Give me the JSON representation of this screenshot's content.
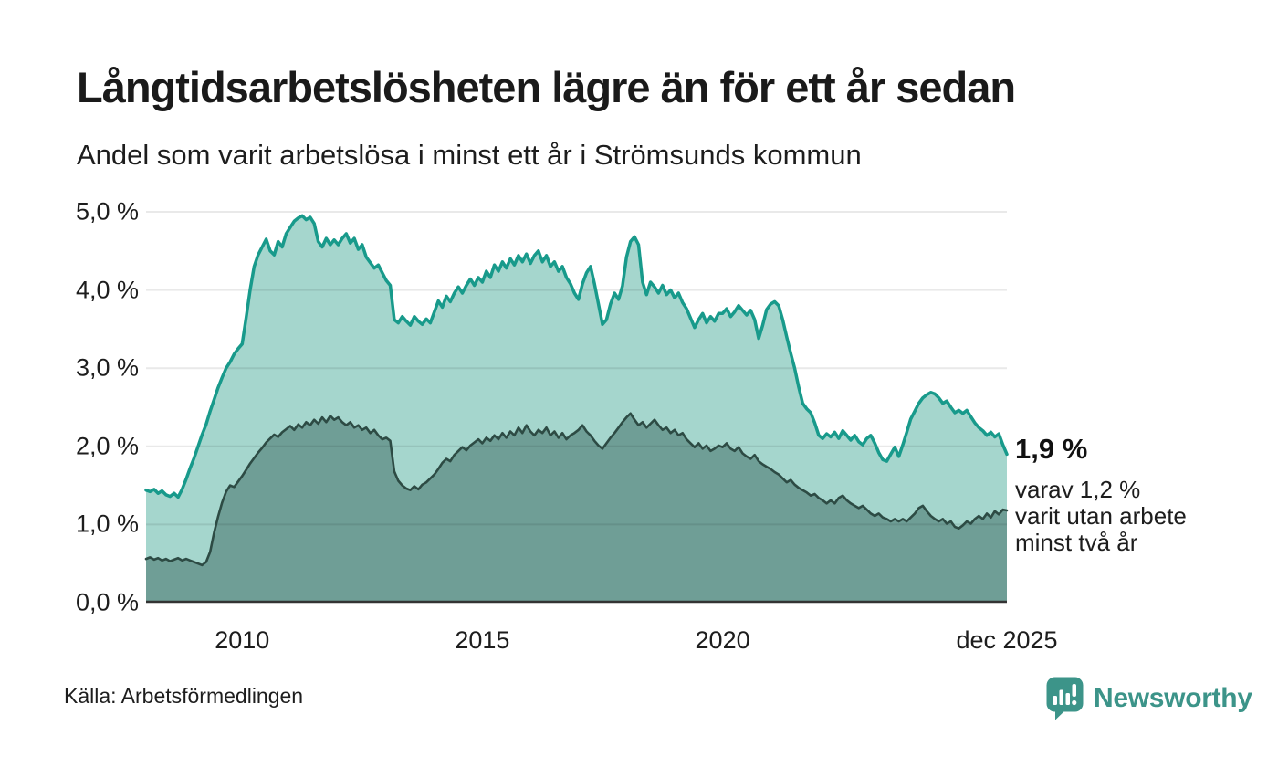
{
  "header": {
    "title": "Långtidsarbetslösheten lägre än för ett år sedan",
    "subtitle": "Andel som varit arbetslösa i minst ett år i Strömsunds kommun"
  },
  "chart_data": {
    "type": "area",
    "unit": "%",
    "x_start": "2008-01",
    "frequency": "monthly",
    "ylim": [
      0,
      5
    ],
    "grid": "horizontal",
    "legend": "none",
    "y_ticks": [
      {
        "value": 0,
        "label": "0,0 %"
      },
      {
        "value": 1,
        "label": "1,0 %"
      },
      {
        "value": 2,
        "label": "2,0 %"
      },
      {
        "value": 3,
        "label": "3,0 %"
      },
      {
        "value": 4,
        "label": "4,0 %"
      },
      {
        "value": 5,
        "label": "5,0 %"
      }
    ],
    "x_ticks": [
      {
        "date": "2010-01",
        "label": "2010"
      },
      {
        "date": "2015-01",
        "label": "2015"
      },
      {
        "date": "2020-01",
        "label": "2020"
      },
      {
        "date": "2025-12",
        "label": "dec 2025"
      }
    ],
    "series": [
      {
        "name": "Arbetslösa minst ett år",
        "latest_value": 1.9,
        "line_color": "#189a8b",
        "fill_color": "#a5d6cd",
        "values": [
          1.44,
          1.42,
          1.45,
          1.4,
          1.43,
          1.38,
          1.36,
          1.4,
          1.35,
          1.45,
          1.58,
          1.72,
          1.85,
          2.0,
          2.15,
          2.28,
          2.45,
          2.6,
          2.75,
          2.88,
          3.0,
          3.08,
          3.18,
          3.25,
          3.31,
          3.65,
          4.0,
          4.3,
          4.45,
          4.55,
          4.65,
          4.5,
          4.45,
          4.62,
          4.55,
          4.72,
          4.8,
          4.88,
          4.92,
          4.95,
          4.9,
          4.93,
          4.85,
          4.62,
          4.55,
          4.66,
          4.58,
          4.64,
          4.58,
          4.66,
          4.72,
          4.6,
          4.66,
          4.52,
          4.58,
          4.42,
          4.35,
          4.28,
          4.32,
          4.22,
          4.12,
          4.06,
          3.62,
          3.58,
          3.66,
          3.6,
          3.55,
          3.66,
          3.6,
          3.56,
          3.63,
          3.58,
          3.72,
          3.86,
          3.78,
          3.92,
          3.85,
          3.96,
          4.04,
          3.96,
          4.06,
          4.14,
          4.06,
          4.16,
          4.1,
          4.24,
          4.16,
          4.32,
          4.24,
          4.36,
          4.28,
          4.4,
          4.32,
          4.44,
          4.36,
          4.46,
          4.34,
          4.44,
          4.5,
          4.36,
          4.44,
          4.3,
          4.36,
          4.24,
          4.3,
          4.16,
          4.08,
          3.96,
          3.88,
          4.08,
          4.22,
          4.3,
          4.08,
          3.82,
          3.56,
          3.62,
          3.82,
          3.96,
          3.88,
          4.05,
          4.42,
          4.62,
          4.68,
          4.58,
          4.1,
          3.94,
          4.1,
          4.04,
          3.96,
          4.06,
          3.94,
          4.0,
          3.9,
          3.96,
          3.84,
          3.76,
          3.64,
          3.52,
          3.62,
          3.7,
          3.58,
          3.66,
          3.6,
          3.7,
          3.7,
          3.76,
          3.66,
          3.72,
          3.8,
          3.74,
          3.68,
          3.74,
          3.62,
          3.38,
          3.55,
          3.75,
          3.82,
          3.85,
          3.8,
          3.62,
          3.4,
          3.19,
          3.0,
          2.76,
          2.55,
          2.48,
          2.43,
          2.3,
          2.14,
          2.1,
          2.16,
          2.12,
          2.18,
          2.1,
          2.2,
          2.14,
          2.08,
          2.14,
          2.06,
          2.02,
          2.1,
          2.14,
          2.04,
          1.92,
          1.83,
          1.81,
          1.9,
          1.99,
          1.87,
          2.02,
          2.18,
          2.35,
          2.45,
          2.55,
          2.62,
          2.66,
          2.69,
          2.67,
          2.62,
          2.55,
          2.58,
          2.5,
          2.43,
          2.46,
          2.42,
          2.46,
          2.38,
          2.3,
          2.24,
          2.2,
          2.14,
          2.18,
          2.12,
          2.16,
          2.02,
          1.9
        ]
      },
      {
        "name": "Arbetslösa minst två år",
        "latest_value": 1.2,
        "line_color": "#2d4b44",
        "fill_color": "#6f9e96",
        "values": [
          0.56,
          0.58,
          0.55,
          0.57,
          0.54,
          0.56,
          0.53,
          0.55,
          0.57,
          0.54,
          0.56,
          0.54,
          0.52,
          0.5,
          0.48,
          0.52,
          0.65,
          0.9,
          1.1,
          1.28,
          1.42,
          1.5,
          1.48,
          1.55,
          1.62,
          1.7,
          1.78,
          1.85,
          1.92,
          1.98,
          2.05,
          2.1,
          2.15,
          2.12,
          2.18,
          2.22,
          2.26,
          2.21,
          2.28,
          2.24,
          2.31,
          2.27,
          2.34,
          2.29,
          2.37,
          2.31,
          2.39,
          2.34,
          2.37,
          2.31,
          2.27,
          2.31,
          2.24,
          2.27,
          2.21,
          2.24,
          2.17,
          2.21,
          2.14,
          2.09,
          2.11,
          2.07,
          1.68,
          1.56,
          1.5,
          1.46,
          1.44,
          1.49,
          1.45,
          1.51,
          1.54,
          1.59,
          1.64,
          1.71,
          1.79,
          1.84,
          1.81,
          1.89,
          1.94,
          1.99,
          1.95,
          2.01,
          2.05,
          2.09,
          2.04,
          2.11,
          2.07,
          2.14,
          2.09,
          2.17,
          2.11,
          2.19,
          2.14,
          2.24,
          2.17,
          2.27,
          2.19,
          2.14,
          2.21,
          2.17,
          2.24,
          2.14,
          2.19,
          2.11,
          2.17,
          2.09,
          2.14,
          2.17,
          2.21,
          2.27,
          2.19,
          2.14,
          2.07,
          2.01,
          1.97,
          2.04,
          2.11,
          2.17,
          2.24,
          2.31,
          2.37,
          2.42,
          2.34,
          2.27,
          2.31,
          2.24,
          2.29,
          2.34,
          2.27,
          2.21,
          2.24,
          2.17,
          2.21,
          2.14,
          2.17,
          2.09,
          2.04,
          1.99,
          2.04,
          1.97,
          2.01,
          1.94,
          1.97,
          2.01,
          1.99,
          2.04,
          1.97,
          1.94,
          1.99,
          1.91,
          1.87,
          1.84,
          1.89,
          1.81,
          1.77,
          1.74,
          1.71,
          1.67,
          1.64,
          1.59,
          1.54,
          1.57,
          1.51,
          1.47,
          1.44,
          1.41,
          1.37,
          1.39,
          1.34,
          1.31,
          1.27,
          1.31,
          1.27,
          1.34,
          1.37,
          1.31,
          1.27,
          1.24,
          1.21,
          1.24,
          1.19,
          1.14,
          1.11,
          1.14,
          1.09,
          1.07,
          1.04,
          1.07,
          1.04,
          1.07,
          1.04,
          1.09,
          1.14,
          1.21,
          1.24,
          1.17,
          1.11,
          1.07,
          1.04,
          1.07,
          1.01,
          1.04,
          0.97,
          0.95,
          0.99,
          1.04,
          1.01,
          1.07,
          1.11,
          1.07,
          1.14,
          1.09,
          1.17,
          1.13,
          1.19,
          1.18
        ]
      }
    ]
  },
  "annotation": {
    "headline": "1,9 %",
    "lines": [
      "varav 1,2 %",
      "varit utan arbete",
      "minst två år"
    ]
  },
  "footer": {
    "source": "Källa: Arbetsförmedlingen",
    "brand": "Newsworthy",
    "brand_color": "#3c9489"
  },
  "colors": {
    "text": "#1a1a1a",
    "grid": "rgba(0,0,0,0.085)",
    "baseline": "#333333",
    "background": "#ffffff"
  }
}
